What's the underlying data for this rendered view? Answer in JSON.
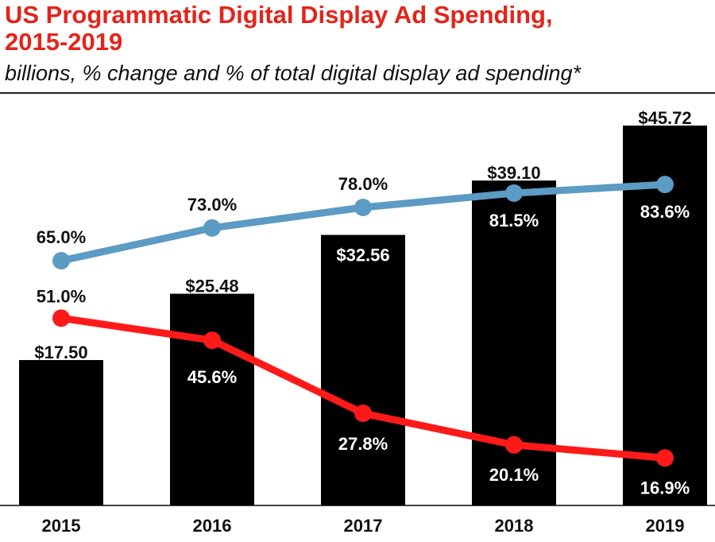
{
  "title_line1": "US Programmatic Digital Display Ad Spending,",
  "title_line2": "2015-2019",
  "subtitle": "billions, % change and % of total digital display ad spending*",
  "colors": {
    "title": "#e3241b",
    "bars": "#000000",
    "pct_change_line": "#ff1a1a",
    "share_line": "#5b9bc4"
  },
  "chart_data": {
    "type": "bar",
    "categories": [
      "2015",
      "2016",
      "2017",
      "2018",
      "2019"
    ],
    "bar_series": {
      "values": [
        17.5,
        25.48,
        32.56,
        39.1,
        45.72
      ],
      "labels": [
        "$17.50",
        "$25.48",
        "$32.56",
        "$39.10",
        "$45.72"
      ]
    },
    "line_series": [
      {
        "key": "share",
        "values": [
          65.0,
          73.0,
          78.0,
          81.5,
          83.6
        ],
        "labels": [
          "65.0%",
          "73.0%",
          "78.0%",
          "81.5%",
          "83.6%"
        ]
      },
      {
        "key": "pct_change",
        "values": [
          51.0,
          45.6,
          27.8,
          20.1,
          16.9
        ],
        "labels": [
          "51.0%",
          "45.6%",
          "27.8%",
          "20.1%",
          "16.9%"
        ]
      }
    ],
    "gridlines": false,
    "legend": "none"
  }
}
